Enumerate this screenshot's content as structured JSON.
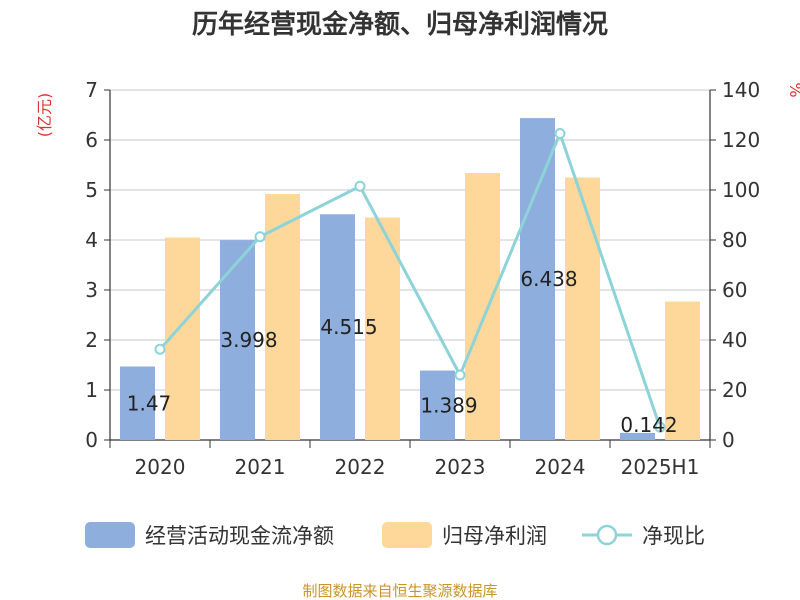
{
  "chart_data": {
    "type": "bar",
    "title": "历年经营现金净额、归母净利润情况",
    "categories": [
      "2020",
      "2021",
      "2022",
      "2023",
      "2024",
      "2025H1"
    ],
    "y_left": {
      "unit_label": "(亿元)",
      "range": [
        0,
        7
      ],
      "ticks": [
        0,
        1,
        2,
        3,
        4,
        5,
        6,
        7
      ]
    },
    "y_right": {
      "unit_label": "%",
      "range": [
        0,
        140
      ],
      "ticks": [
        0,
        20,
        40,
        60,
        80,
        100,
        120,
        140
      ]
    },
    "grid": true,
    "legend_position": "bottom",
    "series": [
      {
        "name": "经营活动现金流净额",
        "kind": "bar",
        "axis": "left",
        "color": "#8eaedd",
        "values": [
          1.47,
          3.998,
          4.515,
          1.389,
          6.438,
          0.142
        ],
        "labels": [
          "1.47",
          "3.998",
          "4.515",
          "1.389",
          "6.438",
          "0.142"
        ]
      },
      {
        "name": "归母净利润",
        "kind": "bar",
        "axis": "left",
        "color": "#fdd89a",
        "values": [
          4.05,
          4.92,
          4.45,
          5.34,
          5.25,
          2.77
        ]
      },
      {
        "name": "净现比",
        "kind": "line",
        "axis": "right",
        "color": "#8dd3d8",
        "values": [
          36.3,
          81.3,
          101.5,
          26.0,
          122.6,
          5.1
        ]
      }
    ]
  },
  "footer": {
    "source": "制图数据来自恒生聚源数据库"
  }
}
